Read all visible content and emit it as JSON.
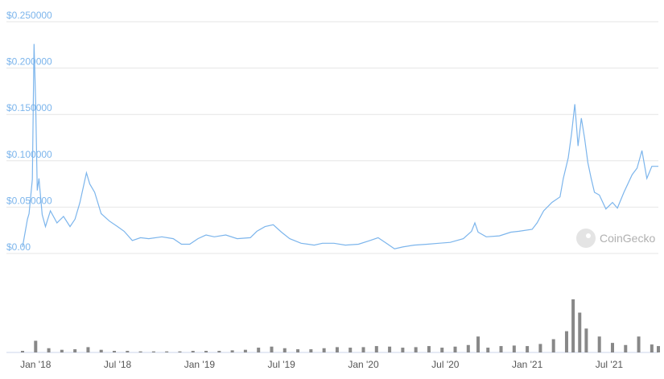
{
  "chart_data": [
    {
      "type": "line",
      "color": "#7cb5ec",
      "grid": true,
      "watermark": "CoinGecko",
      "xlim": [
        2017.92,
        2021.8
      ],
      "ylim": [
        0,
        0.25
      ],
      "yticks": [
        {
          "value": 0,
          "label": "$0.00"
        },
        {
          "value": 0.05,
          "label": "$0.050000"
        },
        {
          "value": 0.1,
          "label": "$0.100000"
        },
        {
          "value": 0.15,
          "label": "$0.150000"
        },
        {
          "value": 0.2,
          "label": "$0.200000"
        },
        {
          "value": 0.25,
          "label": "$0.250000"
        }
      ],
      "xticks": [
        {
          "value": 2018,
          "label": "Jan '18"
        },
        {
          "value": 2018.5,
          "label": "Jul '18"
        },
        {
          "value": 2019,
          "label": "Jan '19"
        },
        {
          "value": 2019.5,
          "label": "Jul '19"
        },
        {
          "value": 2020,
          "label": "Jan '20"
        },
        {
          "value": 2020.5,
          "label": "Jul '20"
        },
        {
          "value": 2021,
          "label": "Jan '21"
        },
        {
          "value": 2021.5,
          "label": "Jul '21"
        }
      ],
      "x": [
        2017.92,
        2017.95,
        2017.96,
        2017.98,
        2017.99,
        2018.0,
        2018.01,
        2018.02,
        2018.04,
        2018.06,
        2018.09,
        2018.13,
        2018.17,
        2018.21,
        2018.24,
        2018.27,
        2018.31,
        2018.33,
        2018.36,
        2018.4,
        2018.45,
        2018.5,
        2018.54,
        2018.59,
        2018.64,
        2018.69,
        2018.77,
        2018.84,
        2018.89,
        2018.94,
        2018.99,
        2019.04,
        2019.09,
        2019.16,
        2019.23,
        2019.31,
        2019.35,
        2019.4,
        2019.45,
        2019.5,
        2019.55,
        2019.62,
        2019.7,
        2019.75,
        2019.82,
        2019.89,
        2019.97,
        2020.04,
        2020.09,
        2020.14,
        2020.19,
        2020.24,
        2020.31,
        2020.39,
        2020.46,
        2020.53,
        2020.61,
        2020.66,
        2020.68,
        2020.7,
        2020.75,
        2020.83,
        2020.9,
        2020.95,
        2021.03,
        2021.06,
        2021.1,
        2021.15,
        2021.2,
        2021.22,
        2021.25,
        2021.27,
        2021.29,
        2021.31,
        2021.33,
        2021.35,
        2021.37,
        2021.39,
        2021.41,
        2021.44,
        2021.48,
        2021.52,
        2021.55,
        2021.59,
        2021.64,
        2021.67,
        2021.7,
        2021.73,
        2021.76,
        2021.8
      ],
      "values": [
        0.007,
        0.037,
        0.043,
        0.08,
        0.226,
        0.163,
        0.068,
        0.081,
        0.042,
        0.029,
        0.046,
        0.033,
        0.04,
        0.029,
        0.037,
        0.055,
        0.087,
        0.075,
        0.066,
        0.043,
        0.035,
        0.029,
        0.024,
        0.014,
        0.017,
        0.016,
        0.018,
        0.016,
        0.01,
        0.01,
        0.016,
        0.02,
        0.018,
        0.02,
        0.016,
        0.017,
        0.024,
        0.029,
        0.031,
        0.023,
        0.016,
        0.011,
        0.009,
        0.011,
        0.011,
        0.009,
        0.01,
        0.014,
        0.017,
        0.011,
        0.005,
        0.007,
        0.009,
        0.01,
        0.011,
        0.012,
        0.016,
        0.024,
        0.033,
        0.023,
        0.018,
        0.019,
        0.023,
        0.024,
        0.026,
        0.033,
        0.046,
        0.055,
        0.061,
        0.081,
        0.103,
        0.129,
        0.161,
        0.116,
        0.146,
        0.124,
        0.098,
        0.081,
        0.066,
        0.063,
        0.048,
        0.055,
        0.049,
        0.066,
        0.085,
        0.092,
        0.111,
        0.081,
        0.094,
        0.094
      ]
    },
    {
      "type": "bar",
      "color": "#888888",
      "xlim": [
        2017.92,
        2021.8
      ],
      "ylim": [
        0,
        100
      ],
      "x": [
        2017.92,
        2018.0,
        2018.08,
        2018.16,
        2018.24,
        2018.32,
        2018.4,
        2018.48,
        2018.56,
        2018.64,
        2018.72,
        2018.8,
        2018.88,
        2018.96,
        2019.04,
        2019.12,
        2019.2,
        2019.28,
        2019.36,
        2019.44,
        2019.52,
        2019.6,
        2019.68,
        2019.76,
        2019.84,
        2019.92,
        2020.0,
        2020.08,
        2020.16,
        2020.24,
        2020.32,
        2020.4,
        2020.48,
        2020.56,
        2020.64,
        2020.7,
        2020.76,
        2020.84,
        2020.92,
        2021.0,
        2021.08,
        2021.16,
        2021.24,
        2021.28,
        2021.32,
        2021.36,
        2021.44,
        2021.52,
        2021.6,
        2021.68,
        2021.76,
        2021.8
      ],
      "values": [
        3,
        22,
        8,
        5,
        6,
        10,
        5,
        3,
        3,
        2,
        2,
        2,
        2,
        3,
        3,
        3,
        4,
        5,
        9,
        11,
        8,
        6,
        6,
        8,
        10,
        9,
        10,
        12,
        11,
        9,
        10,
        12,
        9,
        11,
        14,
        30,
        9,
        12,
        13,
        12,
        16,
        25,
        40,
        100,
        75,
        45,
        30,
        18,
        14,
        30,
        15,
        12
      ]
    }
  ]
}
